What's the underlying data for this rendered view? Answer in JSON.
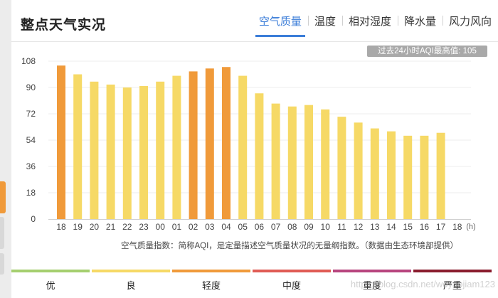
{
  "header": {
    "title": "整点天气实况",
    "tabs": [
      {
        "label": "空气质量",
        "active": true
      },
      {
        "label": "温度",
        "active": false
      },
      {
        "label": "相对湿度",
        "active": false
      },
      {
        "label": "降水量",
        "active": false
      },
      {
        "label": "风力风向",
        "active": false
      }
    ]
  },
  "badge": "过去24小时AQI最高值: 105",
  "note": "空气质量指数：简称AQI，是定量描述空气质量状况的无量纲指数。（数据由生态环境部提供）",
  "legend": [
    {
      "label": "优",
      "color": "#a5cf6f"
    },
    {
      "label": "良",
      "color": "#f6d966"
    },
    {
      "label": "轻度",
      "color": "#f09a3a"
    },
    {
      "label": "中度",
      "color": "#e05c55"
    },
    {
      "label": "重度",
      "color": "#b8457e"
    },
    {
      "label": "严重",
      "color": "#8a1d2e"
    }
  ],
  "watermark": "https://blog.csdn.net/woyaojiam123",
  "chart_data": {
    "type": "bar",
    "categories": [
      "18",
      "19",
      "20",
      "21",
      "22",
      "23",
      "00",
      "01",
      "02",
      "03",
      "04",
      "05",
      "06",
      "07",
      "08",
      "09",
      "10",
      "11",
      "12",
      "13",
      "14",
      "15",
      "16",
      "17",
      "18"
    ],
    "values": [
      105,
      99,
      94,
      92,
      90,
      91,
      94,
      98,
      101,
      103,
      104,
      98,
      86,
      79,
      77,
      78,
      75,
      70,
      66,
      62,
      60,
      57,
      57,
      59,
      null
    ],
    "levels": [
      "轻度",
      "良",
      "良",
      "良",
      "良",
      "良",
      "良",
      "良",
      "轻度",
      "轻度",
      "轻度",
      "良",
      "良",
      "良",
      "良",
      "良",
      "良",
      "良",
      "良",
      "良",
      "良",
      "良",
      "良",
      "良",
      null
    ],
    "x_unit": "(h)",
    "yticks": [
      0,
      18,
      36,
      54,
      72,
      90,
      108
    ],
    "ylim": [
      0,
      108
    ],
    "grid": true,
    "colors": {
      "良": "#f6d966",
      "轻度": "#f09a3a"
    }
  }
}
